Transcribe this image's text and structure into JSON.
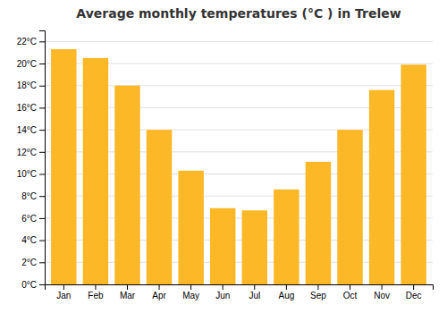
{
  "chart_data": {
    "type": "bar",
    "title": "Average monthly temperatures (°C ) in Trelew",
    "categories": [
      "Jan",
      "Feb",
      "Mar",
      "Apr",
      "May",
      "Jun",
      "Jul",
      "Aug",
      "Sep",
      "Oct",
      "Nov",
      "Dec"
    ],
    "values": [
      21.3,
      20.5,
      18.0,
      14.0,
      10.3,
      6.9,
      6.7,
      8.6,
      11.1,
      14.0,
      17.6,
      19.9
    ],
    "color": "#FDB827",
    "ylim": [
      0,
      23
    ],
    "yticks": [
      {
        "value": 0,
        "label": "0°C"
      },
      {
        "value": 2,
        "label": "2°C"
      },
      {
        "value": 4,
        "label": "4°C"
      },
      {
        "value": 6,
        "label": "6°C"
      },
      {
        "value": 8,
        "label": "8°C"
      },
      {
        "value": 10,
        "label": "10°C"
      },
      {
        "value": 12,
        "label": "12°C"
      },
      {
        "value": 14,
        "label": "14°C"
      },
      {
        "value": 16,
        "label": "16°C"
      },
      {
        "value": 18,
        "label": "18°C"
      },
      {
        "value": 20,
        "label": "20°C"
      },
      {
        "value": 22,
        "label": "22°C"
      }
    ],
    "grid": true
  }
}
